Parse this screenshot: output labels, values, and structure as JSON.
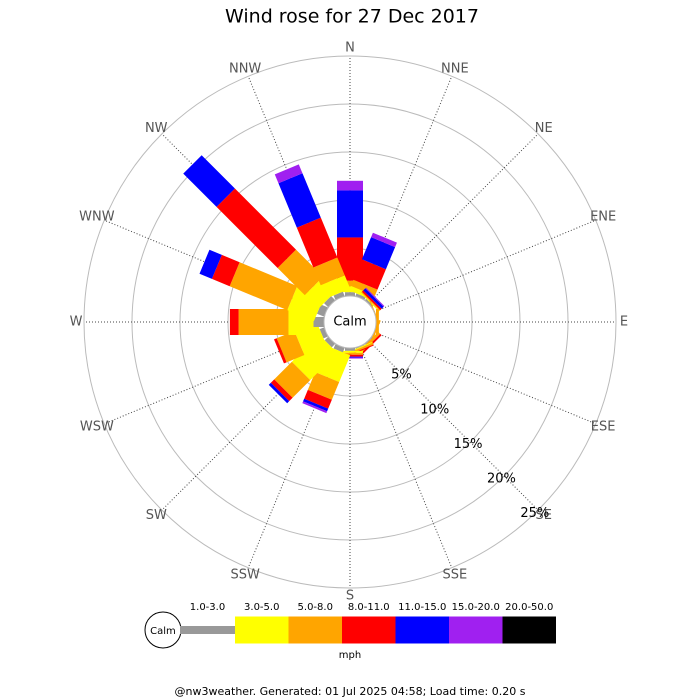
{
  "chart_data": {
    "type": "windrose",
    "title": "Wind rose for 27 Dec 2017",
    "directions": [
      "N",
      "NNE",
      "NE",
      "ENE",
      "E",
      "ESE",
      "SE",
      "SSE",
      "S",
      "SSW",
      "SW",
      "WSW",
      "W",
      "WNW",
      "NW",
      "NNW"
    ],
    "calm_label": "Calm",
    "unit": "mph",
    "rlim": [
      0,
      25
    ],
    "rticks": [
      {
        "value": 5,
        "label": "5%"
      },
      {
        "value": 10,
        "label": "10%"
      },
      {
        "value": 15,
        "label": "15%"
      },
      {
        "value": 20,
        "label": "20%"
      },
      {
        "value": 25,
        "label": "25%"
      }
    ],
    "series": [
      {
        "name": "1.0-3.0",
        "color": "#999999",
        "values": [
          0.4,
          0.3,
          0.2,
          0,
          0,
          0,
          0.1,
          0.1,
          0.3,
          0.5,
          0.5,
          0.5,
          1.1,
          0.8,
          0.6,
          0.5
        ]
      },
      {
        "name": "3.0-5.0",
        "color": "#ffff00",
        "values": [
          0.6,
          0.5,
          0.1,
          0,
          0,
          0,
          0,
          0.1,
          0.2,
          3,
          4,
          2.5,
          2.6,
          3,
          2,
          1.5
        ]
      },
      {
        "name": "5.0-8.0",
        "color": "#ffa500",
        "values": [
          0.6,
          0.7,
          0.1,
          0.1,
          0.3,
          0.2,
          0.3,
          0.2,
          0.2,
          2,
          2.6,
          2,
          5.2,
          6.5,
          4,
          2
        ]
      },
      {
        "name": "8.0-11.0",
        "color": "#ff0000",
        "values": [
          4.5,
          2.3,
          0.2,
          0,
          0,
          0,
          0.2,
          0.1,
          0.2,
          1,
          0.5,
          0.3,
          0.9,
          2,
          9,
          4.5
        ]
      },
      {
        "name": "11.0-15.0",
        "color": "#0000ff",
        "values": [
          4.9,
          2.5,
          0.3,
          0,
          0,
          0,
          0,
          0,
          0.1,
          0.3,
          0.3,
          0,
          0,
          1.4,
          4.9,
          5
        ]
      },
      {
        "name": "15.0-20.0",
        "color": "#a020f0",
        "values": [
          1,
          0.5,
          0.1,
          0,
          0,
          0,
          0,
          0,
          0.1,
          0.2,
          0,
          0,
          0,
          0,
          0,
          1
        ]
      },
      {
        "name": "20.0-50.0",
        "color": "#000000",
        "values": [
          0,
          0,
          0,
          0,
          0,
          0,
          0,
          0,
          0,
          0,
          0,
          0,
          0,
          0,
          0,
          0
        ]
      }
    ],
    "footer": "@nw3weather. Generated: 01 Jul 2025 04:58; Load time: 0.20 s"
  }
}
